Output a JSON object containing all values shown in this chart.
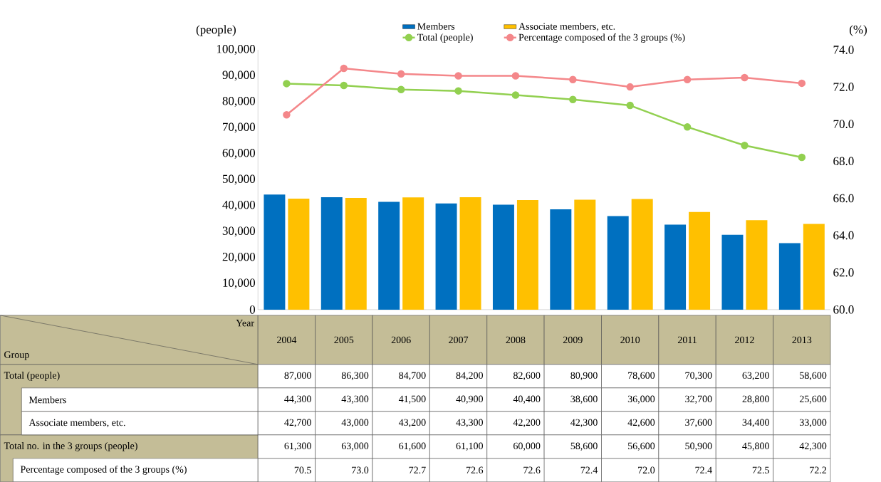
{
  "chart_data": {
    "type": "bar",
    "categories": [
      "2004",
      "2005",
      "2006",
      "2007",
      "2008",
      "2009",
      "2010",
      "2011",
      "2012",
      "2013"
    ],
    "series": [
      {
        "name": "Members",
        "color": "#0070c0",
        "values": [
          44300,
          43300,
          41500,
          40900,
          40400,
          38600,
          36000,
          32700,
          28800,
          25600
        ],
        "value_labels": [
          "44,300",
          "43,300",
          "41,500",
          "40,900",
          "40,400",
          "38,600",
          "36,000",
          "32,700",
          "28,800",
          "25,600"
        ]
      },
      {
        "name": "Associate members, etc.",
        "color": "#ffc000",
        "values": [
          42700,
          43000,
          43200,
          43300,
          42200,
          42300,
          42600,
          37600,
          34400,
          33000
        ],
        "value_labels": [
          "42,700",
          "43,000",
          "43,200",
          "43,300",
          "42,200",
          "42,300",
          "42,600",
          "37,600",
          "34,400",
          "33,000"
        ]
      },
      {
        "name": "Total (people)",
        "type": "line",
        "color": "#92d050",
        "values": [
          87000,
          86300,
          84700,
          84200,
          82600,
          80900,
          78600,
          70300,
          63200,
          58600
        ],
        "value_labels": [
          "87,000",
          "86,300",
          "84,700",
          "84,200",
          "82,600",
          "80,900",
          "78,600",
          "70,300",
          "63,200",
          "58,600"
        ]
      },
      {
        "name": "Percentage composed of the 3 groups (%)",
        "type": "line",
        "axis": "y2",
        "color": "#f4878a",
        "values": [
          70.5,
          73.0,
          72.7,
          72.6,
          72.6,
          72.4,
          72.0,
          72.4,
          72.5,
          72.2
        ],
        "value_labels": [
          "70.5",
          "73.0",
          "72.7",
          "72.6",
          "72.6",
          "72.4",
          "72.0",
          "72.4",
          "72.5",
          "72.2"
        ]
      }
    ],
    "ylabel": "(people)",
    "y2label": "(%)",
    "ylim": [
      0,
      100000
    ],
    "yticks": [
      0,
      {
        "value": 10000,
        "label": "10,000"
      },
      {
        "value": 20000,
        "label": "20,000"
      },
      {
        "value": 30000,
        "label": "30,000"
      },
      {
        "value": 40000,
        "label": "40,000"
      },
      {
        "value": 50000,
        "label": "50,000"
      },
      {
        "value": 60000,
        "label": "60,000"
      },
      {
        "value": 70000,
        "label": "70,000"
      },
      {
        "value": 80000,
        "label": "80,000"
      },
      {
        "value": 90000,
        "label": "90,000"
      },
      {
        "value": 100000,
        "label": "100,000"
      }
    ],
    "y2lim": [
      60,
      74
    ],
    "y2ticks": [
      {
        "value": 60,
        "label": "60.0"
      },
      {
        "value": 62,
        "label": "62.0"
      },
      {
        "value": 64,
        "label": "64.0"
      },
      {
        "value": 66,
        "label": "66.0"
      },
      {
        "value": 68,
        "label": "68.0"
      },
      {
        "value": 70,
        "label": "70.0"
      },
      {
        "value": 72,
        "label": "72.0"
      },
      {
        "value": 74,
        "label": "74.0"
      }
    ],
    "annotations": [
      "Year",
      "Group",
      "Total no. in the 3 groups (people)",
      "61,300",
      "63,000",
      "61,600",
      "61,100",
      "60,000",
      "58,600",
      "56,600",
      "50,900",
      "45,800",
      "42,300"
    ],
    "legend": "top",
    "grid": false,
    "marker": "circle",
    "line_style": "solid"
  }
}
